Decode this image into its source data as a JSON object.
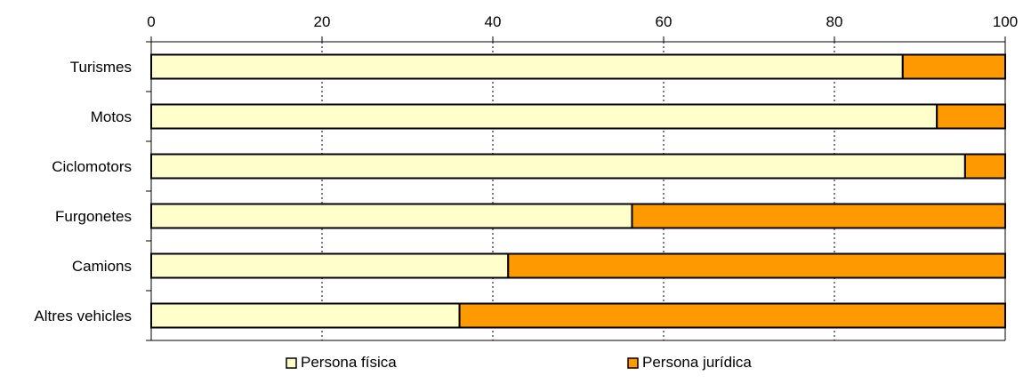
{
  "chart_data": {
    "type": "bar",
    "orientation": "horizontal",
    "stacked": true,
    "title": "",
    "xlabel": "",
    "ylabel": "",
    "xlim": [
      0,
      100
    ],
    "x_ticks": [
      "0",
      "20",
      "40",
      "60",
      "80",
      "100"
    ],
    "x_axis_position": "top",
    "grid": "vertical dashed",
    "legend_placement": "bottom",
    "categories": [
      "Turismes",
      "Motos",
      "Ciclomotors",
      "Furgonetes",
      "Camions",
      "Altres vehicles"
    ],
    "series": [
      {
        "name": "Persona física",
        "color": "#ffffcc",
        "values": [
          88.0,
          92.0,
          95.3,
          56.3,
          41.8,
          36.1
        ]
      },
      {
        "name": "Persona jurídica",
        "color": "#ff9900",
        "values": [
          12.0,
          8.0,
          4.7,
          43.7,
          58.2,
          63.9
        ]
      }
    ]
  }
}
